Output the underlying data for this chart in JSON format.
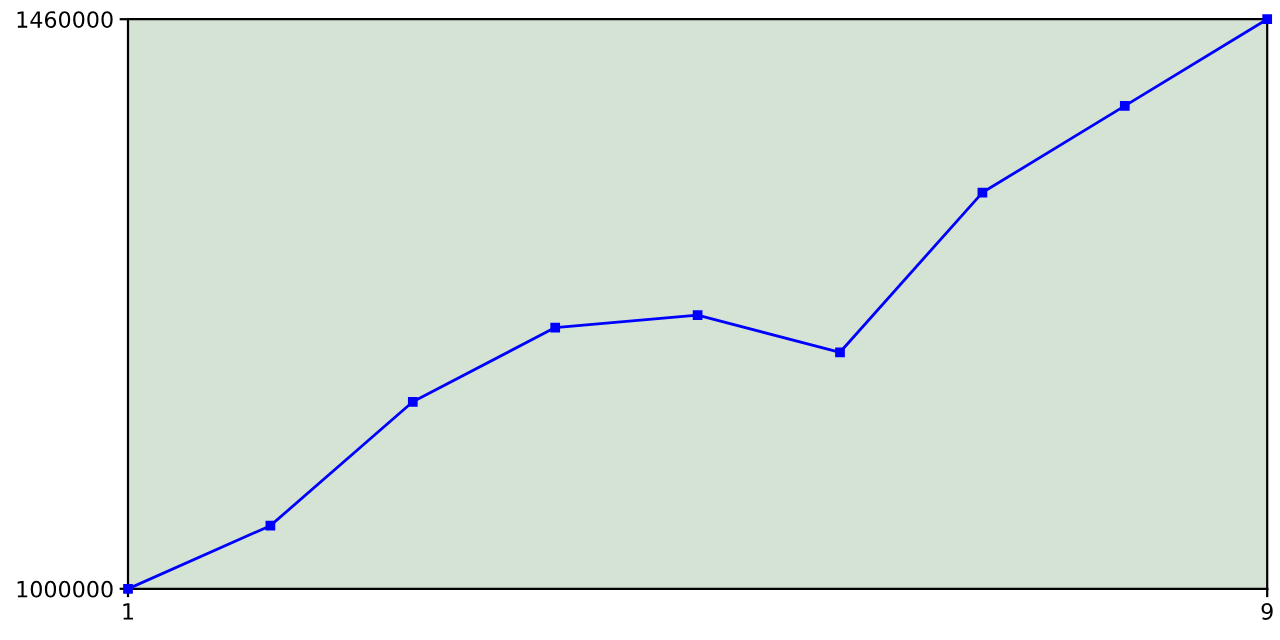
{
  "chart_data": {
    "type": "line",
    "x": [
      1,
      2,
      3,
      4,
      5,
      6,
      7,
      8,
      9
    ],
    "series": [
      {
        "color": "#0000ff",
        "values": [
          1000000,
          1051000,
          1151000,
          1211000,
          1221000,
          1191000,
          1320000,
          1390000,
          1460000
        ]
      }
    ],
    "xlim": [
      1,
      9
    ],
    "xticks": [
      1,
      9
    ],
    "ylim": [
      1000000,
      1460000
    ],
    "yticks": [
      1000000,
      1460000
    ],
    "grid": false,
    "legend": false,
    "marker": "square",
    "line_style": "solid"
  }
}
